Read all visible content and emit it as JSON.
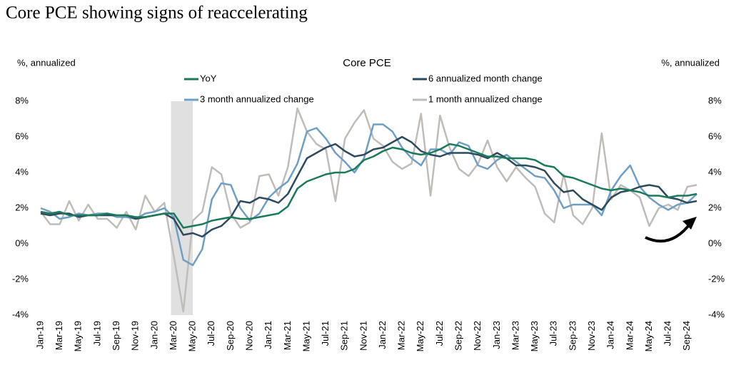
{
  "title": "Core PCE showing signs of reaccelerating",
  "chart_data": {
    "type": "line",
    "title": "Core PCE",
    "ylabel": "%, annualized",
    "y2label": "%, annualized",
    "categories": [
      "Jan-19",
      null,
      "Mar-19",
      null,
      "May-19",
      null,
      "Jul-19",
      null,
      "Sep-19",
      null,
      "Nov-19",
      null,
      "Jan-20",
      null,
      "Mar-20",
      null,
      "May-20",
      null,
      "Jul-20",
      null,
      "Sep-20",
      null,
      "Nov-20",
      null,
      "Jan-21",
      null,
      "Mar-21",
      null,
      "May-21",
      null,
      "Jul-21",
      null,
      "Sep-21",
      null,
      "Nov-21",
      null,
      "Jan-22",
      null,
      "Mar-22",
      null,
      "May-22",
      null,
      "Jul-22",
      null,
      "Sep-22",
      null,
      "Nov-22",
      null,
      "Jan-23",
      null,
      "Mar-23",
      null,
      "May-23",
      null,
      "Jul-23",
      null,
      "Sep-23",
      null,
      "Nov-23",
      null,
      "Jan-24",
      null,
      "Mar-24",
      null,
      "May-24",
      null,
      "Jul-24",
      null,
      "Sep-24",
      null
    ],
    "series": [
      {
        "name": "YoY",
        "color": "#1a7a5a",
        "values": [
          1.8,
          1.7,
          1.8,
          1.6,
          1.6,
          1.6,
          1.6,
          1.7,
          1.6,
          1.6,
          1.5,
          1.5,
          1.6,
          1.7,
          1.7,
          0.9,
          1.0,
          1.1,
          1.3,
          1.4,
          1.5,
          1.4,
          1.4,
          1.5,
          1.6,
          1.7,
          2.1,
          3.1,
          3.5,
          3.7,
          3.9,
          4.0,
          4.0,
          4.2,
          4.7,
          4.9,
          5.2,
          5.4,
          5.3,
          5.1,
          5.0,
          5.1,
          5.3,
          5.6,
          5.5,
          5.3,
          5.1,
          4.9,
          4.9,
          4.8,
          4.8,
          4.8,
          4.7,
          4.4,
          4.3,
          3.8,
          3.7,
          3.5,
          3.3,
          3.1,
          3.0,
          3.1,
          3.0,
          2.9,
          2.7,
          2.7,
          2.6,
          2.7,
          2.7,
          2.8
        ]
      },
      {
        "name": "6 annualized month change",
        "color": "#2e4a5e",
        "values": [
          1.7,
          1.6,
          1.7,
          1.7,
          1.5,
          1.6,
          1.6,
          1.6,
          1.6,
          1.6,
          1.4,
          1.5,
          1.6,
          1.7,
          1.4,
          0.5,
          0.6,
          0.4,
          0.8,
          1.0,
          1.5,
          2.4,
          2.3,
          2.6,
          2.5,
          2.3,
          2.8,
          3.8,
          4.8,
          5.1,
          5.4,
          5.6,
          5.2,
          4.9,
          5.0,
          5.3,
          5.4,
          5.7,
          6.0,
          5.7,
          5.2,
          5.0,
          4.9,
          5.1,
          5.1,
          5.1,
          5.0,
          4.8,
          5.1,
          4.8,
          4.4,
          4.4,
          4.3,
          4.1,
          3.4,
          2.9,
          3.0,
          2.5,
          2.2,
          1.9,
          2.6,
          2.9,
          3.0,
          3.2,
          3.3,
          3.2,
          2.6,
          2.5,
          2.3,
          2.4
        ]
      },
      {
        "name": "3 month annualized change",
        "color": "#6f9fc4",
        "values": [
          2.0,
          1.8,
          1.4,
          1.5,
          1.7,
          1.6,
          1.7,
          1.7,
          1.5,
          1.5,
          1.4,
          1.7,
          1.8,
          2.0,
          1.5,
          -0.9,
          -1.2,
          -0.3,
          2.5,
          3.4,
          3.3,
          2.0,
          1.3,
          1.7,
          2.6,
          3.1,
          3.5,
          4.5,
          6.3,
          6.5,
          5.9,
          5.1,
          4.6,
          4.0,
          4.8,
          6.7,
          6.7,
          6.3,
          5.4,
          4.8,
          4.4,
          5.3,
          5.3,
          5.0,
          5.7,
          5.5,
          4.4,
          4.2,
          4.7,
          5.0,
          4.6,
          4.2,
          3.8,
          3.7,
          3.0,
          2.0,
          2.2,
          2.2,
          2.2,
          1.6,
          3.0,
          3.8,
          4.4,
          3.2,
          2.6,
          2.2,
          1.9,
          2.2,
          2.3,
          2.8
        ]
      },
      {
        "name": "1 month annualized change",
        "color": "#c0bdb8",
        "values": [
          1.8,
          1.1,
          1.1,
          2.4,
          1.3,
          2.2,
          1.4,
          1.4,
          0.9,
          1.8,
          0.8,
          2.7,
          1.8,
          2.3,
          -0.7,
          -3.8,
          1.3,
          1.8,
          4.3,
          3.9,
          1.7,
          0.9,
          1.2,
          3.8,
          3.9,
          2.7,
          4.3,
          7.6,
          6.3,
          5.6,
          5.3,
          2.4,
          5.9,
          6.8,
          7.5,
          5.9,
          5.5,
          4.6,
          4.2,
          4.5,
          7.3,
          2.7,
          7.2,
          5.4,
          4.2,
          3.8,
          4.5,
          5.8,
          4.3,
          3.5,
          4.3,
          3.7,
          3.2,
          1.7,
          1.2,
          3.9,
          1.6,
          1.1,
          2.0,
          6.2,
          2.5,
          3.3,
          3.0,
          2.6,
          1.0,
          2.0,
          2.2,
          1.9,
          3.2,
          3.3
        ]
      }
    ],
    "shaded_periods": [
      [
        14,
        15
      ]
    ],
    "ylim": [
      -4,
      8
    ],
    "yticks": [
      {
        "value": -4,
        "label": "-4%"
      },
      {
        "value": -2,
        "label": "-2%"
      },
      {
        "value": 0,
        "label": "0%"
      },
      {
        "value": 2,
        "label": "2%"
      },
      {
        "value": 4,
        "label": "4%"
      },
      {
        "value": 6,
        "label": "6%"
      },
      {
        "value": 8,
        "label": "8%"
      }
    ],
    "y2lim": [
      -4,
      8
    ],
    "y2ticks": [
      {
        "value": -4,
        "label": "-4%"
      },
      {
        "value": -2,
        "label": "-2%"
      },
      {
        "value": 0,
        "label": "0%"
      },
      {
        "value": 2,
        "label": "2%"
      },
      {
        "value": 4,
        "label": "4%"
      },
      {
        "value": 6,
        "label": "6%"
      },
      {
        "value": 8,
        "label": "8%"
      }
    ],
    "grid": false
  }
}
